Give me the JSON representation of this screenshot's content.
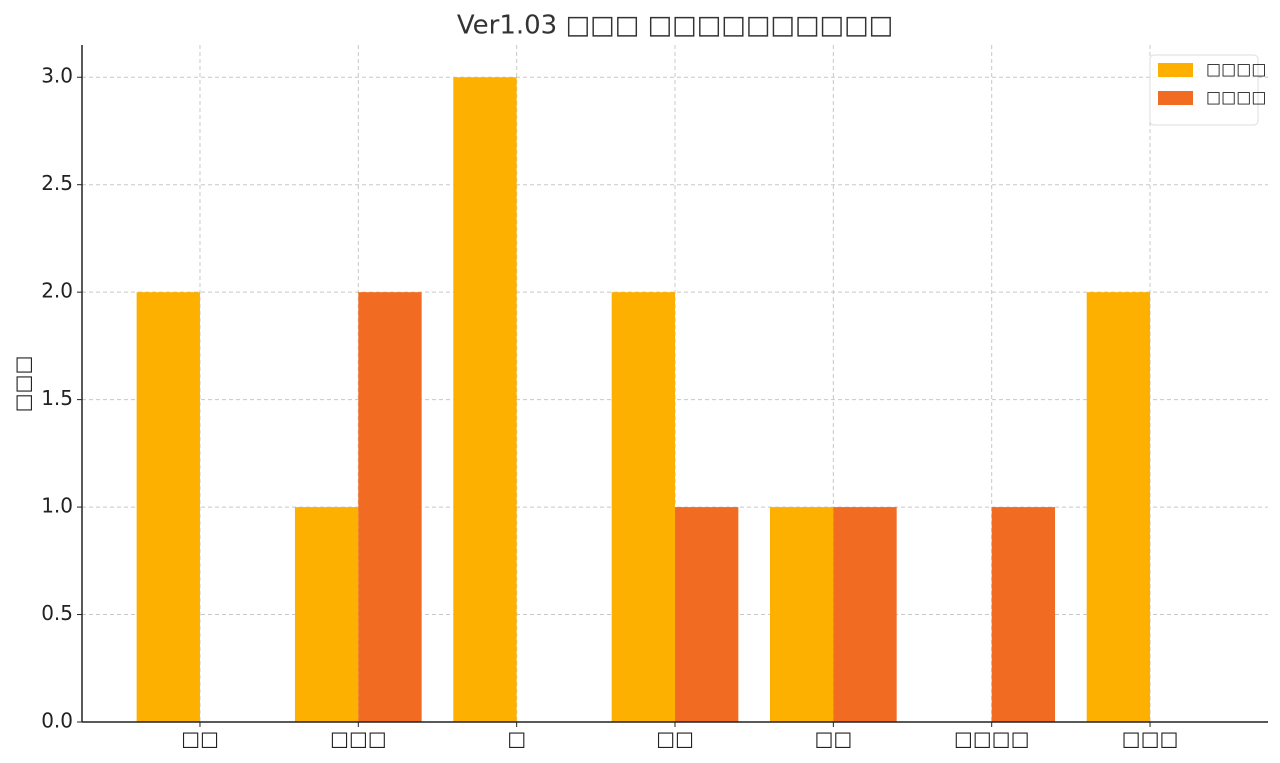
{
  "chart_data": {
    "type": "bar",
    "title": "Ver1.03 □□□ □□□□□□□□□□",
    "y_label": "□□□",
    "categories": [
      "□□",
      "□□□",
      "□",
      "□□",
      "□□",
      "□□□□",
      "□□□"
    ],
    "series": [
      {
        "name": "□□□□",
        "color": "#fdb000",
        "values": [
          2,
          1,
          3,
          2,
          1,
          0,
          2
        ]
      },
      {
        "name": "□□□□",
        "color": "#f26b22",
        "values": [
          0,
          2,
          0,
          1,
          1,
          1,
          0
        ]
      }
    ],
    "ylim": [
      0,
      3.15
    ],
    "yticks": [
      {
        "value": 0,
        "label": "0.0"
      },
      0.5,
      {
        "value": 1,
        "label": "1.0"
      },
      1.5,
      {
        "value": 2,
        "label": "2.0"
      },
      2.5,
      {
        "value": 3,
        "label": "3.0"
      }
    ],
    "grid": true,
    "legend": "upper right"
  }
}
